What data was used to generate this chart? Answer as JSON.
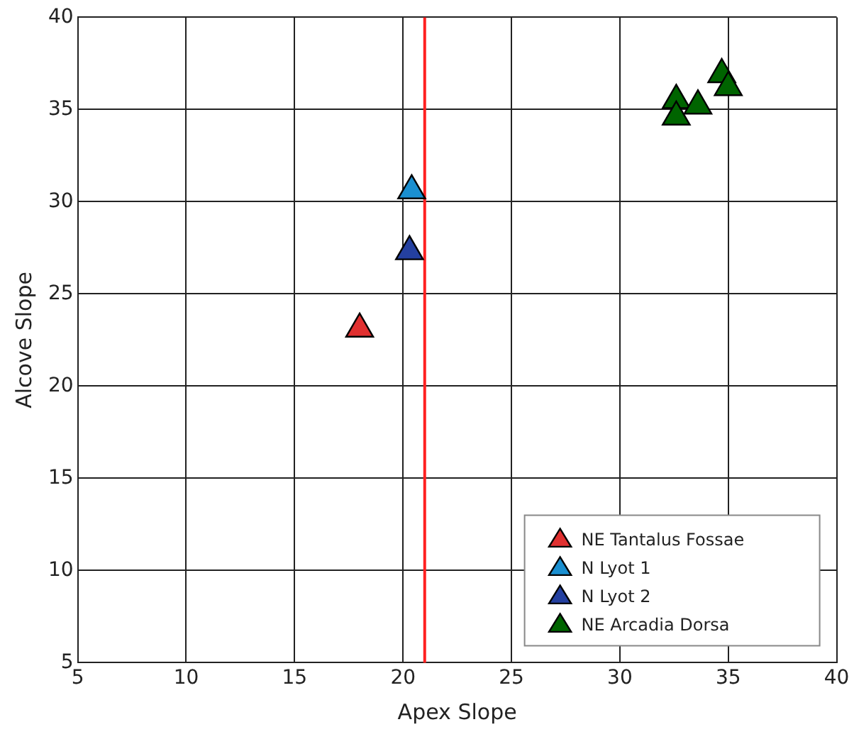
{
  "chart_data": {
    "type": "scatter",
    "xlabel": "Apex Slope",
    "ylabel": "Alcove Slope",
    "xlim": [
      5,
      40
    ],
    "xticks": [
      5,
      10,
      15,
      20,
      25,
      30,
      35,
      40
    ],
    "ylim": [
      5,
      40
    ],
    "yticks": [
      5,
      10,
      15,
      20,
      25,
      30,
      35,
      40
    ],
    "grid": true,
    "legend": "bottom right",
    "marker": "triangle",
    "series": [
      {
        "name": "NE Tantalus Fossae",
        "color": "#e03030",
        "x": [
          18.0
        ],
        "values": [
          23.1
        ]
      },
      {
        "name": "N Lyot 1",
        "color": "#1a8fd0",
        "x": [
          20.4
        ],
        "values": [
          30.6
        ]
      },
      {
        "name": "N Lyot 2",
        "color": "#2440a0",
        "x": [
          20.3
        ],
        "values": [
          27.3
        ]
      },
      {
        "name": "NE Arcadia Dorsa",
        "color": "#006400",
        "x": [
          34.7,
          35.0,
          32.6,
          33.6,
          32.6
        ],
        "values": [
          36.9,
          36.2,
          35.5,
          35.2,
          34.6
        ]
      }
    ],
    "ref_lines": [
      {
        "axis": "x",
        "value": 21,
        "color": "#ff2020"
      }
    ]
  }
}
